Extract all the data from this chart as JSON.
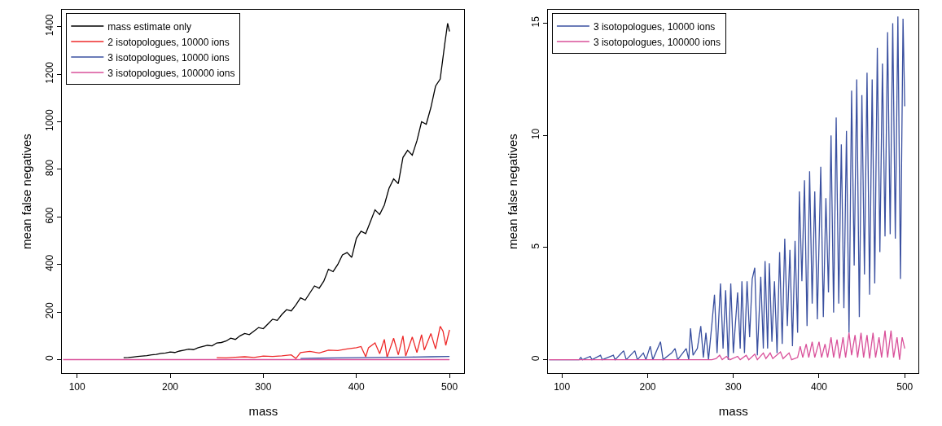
{
  "chart_data": [
    {
      "type": "line",
      "xlabel": "mass",
      "ylabel": "mean false negatives",
      "xlim": [
        84,
        516
      ],
      "ylim": [
        -57,
        1471
      ],
      "xticks": [
        100,
        200,
        300,
        400,
        500
      ],
      "yticks": [
        0,
        200,
        400,
        600,
        800,
        1000,
        1200,
        1400
      ],
      "legend": "top left",
      "series": [
        {
          "name": "mass estimate only",
          "color": "#000000",
          "x": [
            150,
            155,
            160,
            165,
            170,
            175,
            180,
            185,
            190,
            195,
            200,
            205,
            210,
            215,
            220,
            225,
            230,
            235,
            240,
            245,
            250,
            255,
            260,
            265,
            270,
            275,
            280,
            285,
            290,
            295,
            300,
            305,
            310,
            315,
            320,
            325,
            330,
            335,
            340,
            345,
            350,
            355,
            360,
            365,
            370,
            375,
            380,
            385,
            390,
            395,
            400,
            405,
            410,
            415,
            420,
            425,
            430,
            435,
            440,
            445,
            450,
            455,
            460,
            465,
            470,
            475,
            480,
            485,
            490,
            495,
            498,
            500
          ],
          "values": [
            8,
            9,
            11,
            13,
            15,
            17,
            20,
            22,
            26,
            28,
            32,
            30,
            36,
            40,
            44,
            42,
            50,
            55,
            60,
            58,
            70,
            72,
            78,
            90,
            85,
            100,
            110,
            105,
            120,
            135,
            130,
            150,
            170,
            165,
            190,
            210,
            205,
            230,
            260,
            250,
            280,
            310,
            300,
            330,
            380,
            370,
            400,
            440,
            450,
            430,
            510,
            540,
            530,
            580,
            630,
            610,
            650,
            720,
            760,
            740,
            850,
            880,
            860,
            920,
            1000,
            990,
            1060,
            1150,
            1180,
            1330,
            1414,
            1380
          ]
        },
        {
          "name": "2 isotopologues, 10000 ions",
          "color": "#ee2a2a",
          "x": [
            250,
            260,
            270,
            280,
            290,
            300,
            310,
            320,
            330,
            335,
            340,
            350,
            360,
            370,
            380,
            390,
            400,
            405,
            410,
            413,
            420,
            425,
            430,
            433,
            440,
            445,
            450,
            453,
            460,
            465,
            470,
            473,
            480,
            485,
            490,
            493,
            496,
            500
          ],
          "values": [
            8,
            7,
            10,
            12,
            9,
            15,
            13,
            16,
            20,
            5,
            30,
            35,
            28,
            40,
            38,
            45,
            50,
            55,
            12,
            50,
            70,
            25,
            85,
            10,
            90,
            20,
            100,
            15,
            95,
            30,
            105,
            40,
            110,
            45,
            140,
            120,
            60,
            125
          ]
        },
        {
          "name": "3 isotopologues, 10000 ions",
          "color": "#3a50a0",
          "x": [
            340,
            360,
            380,
            400,
            420,
            440,
            460,
            480,
            500
          ],
          "values": [
            5,
            6,
            7,
            8,
            9,
            10,
            11,
            12,
            13
          ]
        },
        {
          "name": "3 isotopologues, 100000 ions",
          "color": "#d9509a",
          "x": [
            85,
            500
          ],
          "values": [
            0,
            0
          ]
        }
      ]
    },
    {
      "type": "line",
      "xlabel": "mass",
      "ylabel": "mean false negatives",
      "xlim": [
        84,
        516
      ],
      "ylim": [
        -0.6,
        15.6
      ],
      "xticks": [
        100,
        200,
        300,
        400,
        500
      ],
      "yticks": [
        0,
        5,
        10,
        15
      ],
      "legend": "top left",
      "series": [
        {
          "name": "3 isotopologues, 10000 ions",
          "color": "#3a50a0",
          "x": [
            85,
            120,
            122,
            124,
            133,
            135,
            145,
            147,
            160,
            162,
            172,
            175,
            185,
            188,
            195,
            198,
            203,
            206,
            215,
            218,
            228,
            232,
            235,
            245,
            248,
            250,
            253,
            258,
            262,
            265,
            268,
            271,
            275,
            278,
            281,
            285,
            288,
            291,
            294,
            297,
            300,
            305,
            308,
            310,
            313,
            316,
            319,
            322,
            325,
            328,
            332,
            335,
            337,
            340,
            342,
            345,
            348,
            351,
            354,
            357,
            360,
            363,
            366,
            369,
            372,
            375,
            377,
            380,
            383,
            386,
            389,
            392,
            395,
            398,
            402,
            405,
            408,
            411,
            414,
            417,
            420,
            423,
            426,
            429,
            432,
            435,
            438,
            441,
            444,
            447,
            450,
            453,
            456,
            459,
            462,
            465,
            468,
            471,
            474,
            477,
            480,
            483,
            486,
            489,
            492,
            495,
            498,
            500
          ],
          "values": [
            0,
            0,
            0.1,
            0,
            0.15,
            0,
            0.2,
            0,
            0.2,
            0,
            0.4,
            0,
            0.4,
            0,
            0.3,
            0,
            0.6,
            0,
            0.8,
            0,
            0.3,
            0.5,
            0,
            0.5,
            0,
            1.4,
            0.2,
            0.5,
            1.5,
            0.1,
            1.2,
            0,
            1.6,
            2.9,
            0.3,
            3.4,
            0.5,
            3.1,
            0,
            3.4,
            0.3,
            3.0,
            0.5,
            3.5,
            0.3,
            3.5,
            1.0,
            3.6,
            4.1,
            0.2,
            3.7,
            0.5,
            4.4,
            0.5,
            4.3,
            0.8,
            3.5,
            0.3,
            4.8,
            0.7,
            5.4,
            1.5,
            4.9,
            0.6,
            5.3,
            1.2,
            7.5,
            3.5,
            8.0,
            1.5,
            8.4,
            2.5,
            7.5,
            1.8,
            8.6,
            1.9,
            7.2,
            3.0,
            10.0,
            2.1,
            10.8,
            2.5,
            9.6,
            2.3,
            10.2,
            1.2,
            12.0,
            4.2,
            12.5,
            1.9,
            11.8,
            3.8,
            12.8,
            2.9,
            12.5,
            3.4,
            13.9,
            4.8,
            13.2,
            5.5,
            14.6,
            5.6,
            15.0,
            5.4,
            15.3,
            3.6,
            15.2,
            11.3
          ]
        },
        {
          "name": "3 isotopologues, 100000 ions",
          "color": "#d9509a",
          "x": [
            85,
            275,
            280,
            284,
            287,
            292,
            296,
            305,
            308,
            315,
            318,
            325,
            328,
            335,
            338,
            343,
            346,
            355,
            358,
            365,
            368,
            375,
            378,
            381,
            385,
            388,
            392,
            395,
            400,
            403,
            407,
            410,
            414,
            417,
            421,
            424,
            428,
            431,
            435,
            438,
            442,
            445,
            449,
            452,
            456,
            459,
            463,
            466,
            470,
            473,
            477,
            480,
            484,
            487,
            491,
            494,
            497,
            500
          ],
          "values": [
            0,
            0,
            0.05,
            0.2,
            0,
            0.15,
            0,
            0.15,
            0,
            0.2,
            0,
            0.25,
            0,
            0.3,
            0.05,
            0.3,
            0.05,
            0.35,
            0.05,
            0.3,
            0,
            0.1,
            0.6,
            0.1,
            0.7,
            0.1,
            0.8,
            0.1,
            0.8,
            0.1,
            0.7,
            0.1,
            1.0,
            0.1,
            0.9,
            0.05,
            1.0,
            0.1,
            1.2,
            0.2,
            1.1,
            0.1,
            1.2,
            0.1,
            1.1,
            0.05,
            1.2,
            0.1,
            1.0,
            0.1,
            1.3,
            0.1,
            1.3,
            0.1,
            1.0,
            0,
            1.0,
            0.5
          ]
        }
      ]
    }
  ]
}
